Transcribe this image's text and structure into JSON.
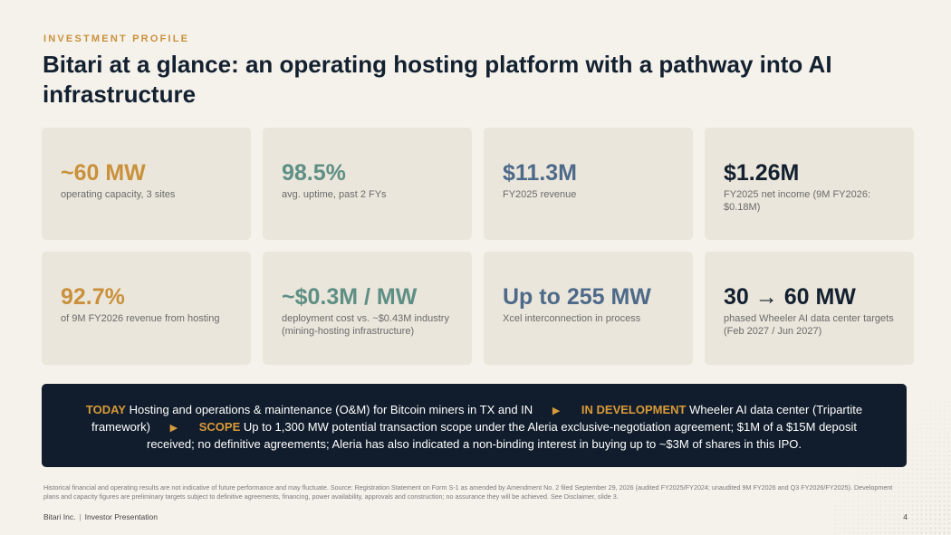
{
  "eyebrow": "INVESTMENT PROFILE",
  "title": "Bitari at a glance: an operating hosting platform with a pathway into AI infrastructure",
  "metrics": [
    {
      "value": "~60 MW",
      "label": "operating capacity, 3 sites",
      "color": "#c9913b"
    },
    {
      "value": "98.5%",
      "label": "avg. uptime, past 2 FYs",
      "color": "#5e8f85"
    },
    {
      "value": "$11.3M",
      "label": "FY2025 revenue",
      "color": "#4d6a8a"
    },
    {
      "value": "$1.26M",
      "label": "FY2025 net income (9M FY2026: $0.18M)",
      "color": "#13202f"
    },
    {
      "value": "92.7%",
      "label": "of 9M FY2026 revenue from hosting",
      "color": "#c9913b"
    },
    {
      "value": "~$0.3M / MW",
      "label": "deployment cost vs. ~$0.43M industry (mining-hosting infrastructure)",
      "color": "#5e8f85"
    },
    {
      "value": "Up to 255 MW",
      "label": "Xcel interconnection in process",
      "color": "#4d6a8a"
    },
    {
      "value": "30 → 60 MW",
      "label": "phased Wheeler AI data center targets (Feb 2027 / Jun 2027)",
      "color": "#13202f"
    }
  ],
  "banner": {
    "today_tag": "TODAY",
    "today_text": "Hosting and operations & maintenance (O&M) for Bitcoin miners in TX and IN",
    "arrow_icon": "triangle-right-icon",
    "dev_tag": "IN DEVELOPMENT",
    "dev_text": "Wheeler AI data center (Tripartite framework)",
    "scope_tag": "SCOPE",
    "scope_text": "Up to 1,300 MW potential transaction scope under the Aleria exclusive-negotiation agreement; $1M of a $15M deposit received; no definitive agreements; Aleria has also indicated a non-binding interest in buying up to ~$3M of shares in this IPO."
  },
  "footnote": "Historical financial and operating results are not indicative of future performance and may fluctuate. Source: Registration Statement on Form S-1 as amended by Amendment No. 2 filed September 29, 2026 (audited FY2025/FY2024; unaudited 9M FY2026 and Q3 FY2026/FY2025). Development plans and capacity figures are preliminary targets subject to definitive agreements, financing, power availability, approvals and construction; no assurance they will be achieved. See Disclaimer, slide 3.",
  "footer": {
    "company": "Bitari Inc.",
    "separator": "|",
    "doc": "Investor Presentation",
    "page": "4"
  }
}
